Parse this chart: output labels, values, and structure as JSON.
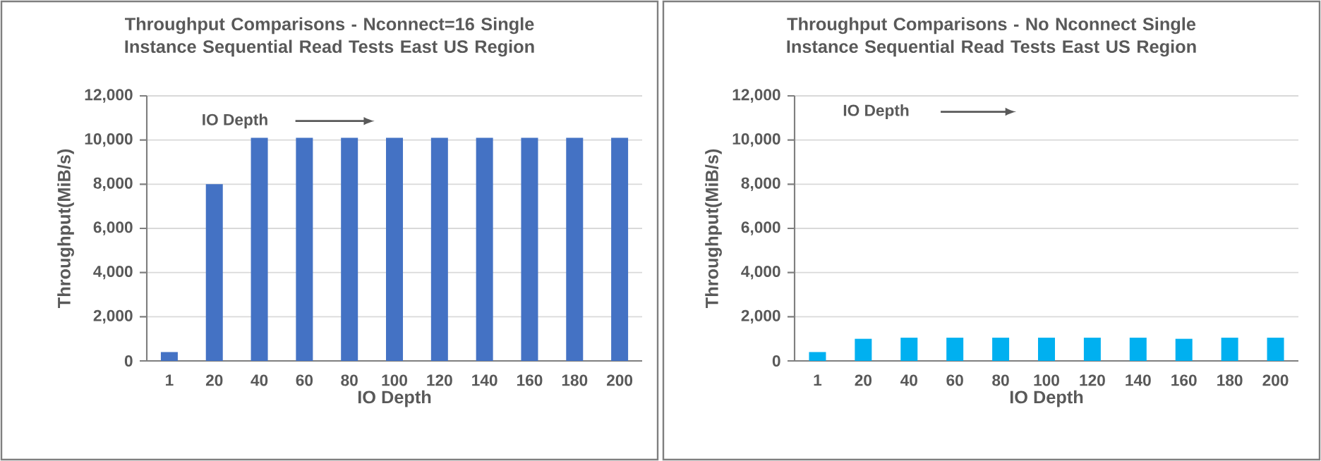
{
  "chart_data": [
    {
      "type": "bar",
      "title": "Throughput Comparisons - Nconnect=16 Single Instance Sequential Read Tests East US Region",
      "xlabel": "IO Depth",
      "ylabel": "Throughput(MiB/s)",
      "categories": [
        "1",
        "20",
        "40",
        "60",
        "80",
        "100",
        "120",
        "140",
        "160",
        "180",
        "200"
      ],
      "values": [
        400,
        8000,
        10100,
        10100,
        10100,
        10100,
        10100,
        10100,
        10100,
        10100,
        10100
      ],
      "color": "#4472c4",
      "ylim": [
        0,
        12000
      ],
      "yticks": [
        0,
        {
          "value": 2000,
          "label": "2,000"
        },
        {
          "value": 4000,
          "label": "4,000"
        },
        {
          "value": 6000,
          "label": "6,000"
        },
        {
          "value": 8000,
          "label": "8,000"
        },
        {
          "value": 10000,
          "label": "10,000"
        },
        {
          "value": 12000,
          "label": "12,000"
        }
      ],
      "grid": "y",
      "annotations": [
        "IO Depth"
      ]
    },
    {
      "type": "bar",
      "title": "Throughput Comparisons - No Nconnect Single Instance Sequential Read Tests East US Region",
      "xlabel": "IO Depth",
      "ylabel": "Throughput(MiB/s)",
      "categories": [
        "1",
        "20",
        "40",
        "60",
        "80",
        "100",
        "120",
        "140",
        "160",
        "180",
        "200"
      ],
      "values": [
        400,
        1000,
        1050,
        1050,
        1050,
        1050,
        1050,
        1050,
        1000,
        1050,
        1050
      ],
      "color": "#00b0f0",
      "ylim": [
        0,
        12000
      ],
      "yticks": [
        0,
        {
          "value": 2000,
          "label": "2,000"
        },
        {
          "value": 4000,
          "label": "4,000"
        },
        {
          "value": 6000,
          "label": "6,000"
        },
        {
          "value": 8000,
          "label": "8,000"
        },
        {
          "value": 10000,
          "label": "10,000"
        },
        {
          "value": 12000,
          "label": "12,000"
        }
      ],
      "grid": "y",
      "annotations": [
        "IO Depth"
      ]
    }
  ]
}
